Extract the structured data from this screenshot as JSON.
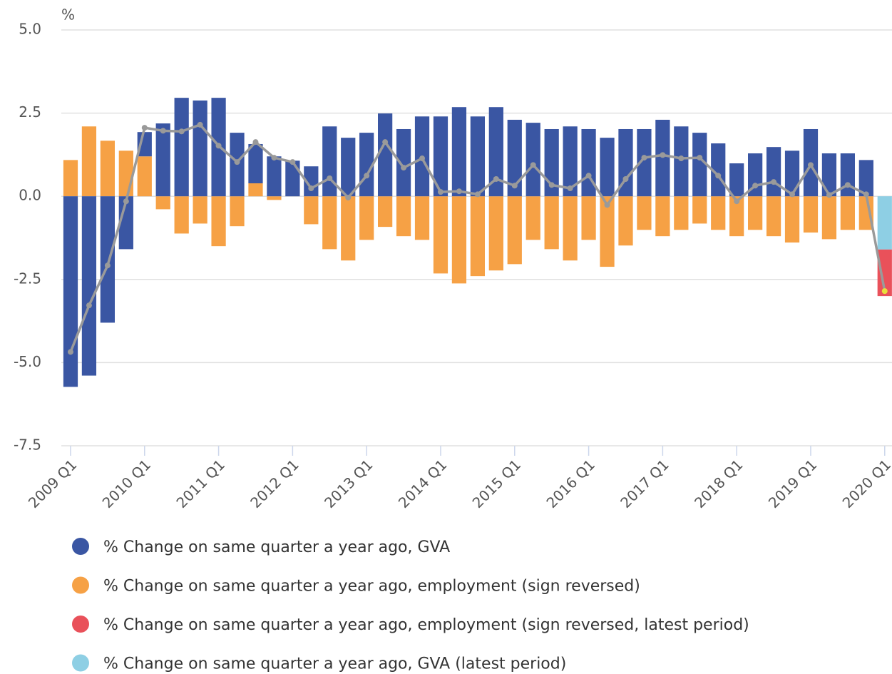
{
  "chart_data": {
    "type": "bar",
    "y_label": "%",
    "categories": [
      "2009 Q1",
      null,
      null,
      null,
      "2010 Q1",
      null,
      null,
      null,
      "2011 Q1",
      null,
      null,
      null,
      "2012 Q1",
      null,
      null,
      null,
      "2013 Q1",
      null,
      null,
      null,
      "2014 Q1",
      null,
      null,
      null,
      "2015 Q1",
      null,
      null,
      null,
      "2016 Q1",
      null,
      null,
      null,
      "2017 Q1",
      null,
      null,
      null,
      "2018 Q1",
      null,
      null,
      null,
      "2019 Q1",
      null,
      null,
      null,
      "2020 Q1"
    ],
    "stacked": true,
    "series": [
      {
        "name": "% Change on same quarter a year ago, GVA",
        "color": "#3a56a3",
        "values": [
          -5.73,
          -5.39,
          -3.8,
          -1.59,
          0.73,
          2.19,
          2.96,
          2.88,
          2.96,
          1.91,
          1.18,
          1.2,
          1.07,
          0.9,
          2.1,
          1.76,
          1.91,
          2.49,
          2.02,
          2.4,
          2.4,
          2.68,
          2.4,
          2.68,
          2.3,
          2.21,
          2.02,
          2.1,
          2.02,
          1.76,
          2.02,
          2.02,
          2.3,
          2.1,
          1.91,
          1.59,
          0.99,
          1.29,
          1.48,
          1.37,
          2.02,
          1.29,
          1.29,
          1.09,
          null
        ]
      },
      {
        "name": "% Change on same quarter a year ago, employment (sign reversed)",
        "color": "#f6a145",
        "values": [
          1.09,
          2.1,
          1.67,
          1.37,
          1.2,
          -0.39,
          -1.12,
          -0.82,
          -1.5,
          -0.9,
          0.39,
          -0.11,
          0,
          -0.84,
          -1.59,
          -1.93,
          -1.31,
          -0.92,
          -1.2,
          -1.31,
          -2.32,
          -2.62,
          -2.4,
          -2.23,
          -2.04,
          -1.31,
          -1.59,
          -1.93,
          -1.31,
          -2.12,
          -1.48,
          -1.01,
          -1.2,
          -1.01,
          -0.82,
          -1.01,
          -1.2,
          -1.01,
          -1.2,
          -1.39,
          -1.09,
          -1.29,
          -1.01,
          -1.01,
          null
        ]
      },
      {
        "name": "% Change on same quarter a year ago, employment (sign reversed, latest period)",
        "color": "#e9515a",
        "values": [
          null,
          null,
          null,
          null,
          null,
          null,
          null,
          null,
          null,
          null,
          null,
          null,
          null,
          null,
          null,
          null,
          null,
          null,
          null,
          null,
          null,
          null,
          null,
          null,
          null,
          null,
          null,
          null,
          null,
          null,
          null,
          null,
          null,
          null,
          null,
          null,
          null,
          null,
          null,
          null,
          null,
          null,
          null,
          null,
          -1.4
        ]
      },
      {
        "name": "% Change on same quarter a year ago, GVA (latest period)",
        "color": "#8ecfe4",
        "values": [
          null,
          null,
          null,
          null,
          null,
          null,
          null,
          null,
          null,
          null,
          null,
          null,
          null,
          null,
          null,
          null,
          null,
          null,
          null,
          null,
          null,
          null,
          null,
          null,
          null,
          null,
          null,
          null,
          null,
          null,
          null,
          null,
          null,
          null,
          null,
          null,
          null,
          null,
          null,
          null,
          null,
          null,
          null,
          null,
          -1.6
        ]
      },
      {
        "type": "line",
        "color": "#9a9a9a",
        "last_point_color": "#e8e03c",
        "values": [
          -4.68,
          -3.28,
          -2.08,
          -0.15,
          2.06,
          1.97,
          1.95,
          2.15,
          1.52,
          1.03,
          1.63,
          1.16,
          1.03,
          0.24,
          0.54,
          -0.04,
          0.62,
          1.63,
          0.86,
          1.14,
          0.13,
          0.15,
          0.06,
          0.52,
          0.32,
          0.94,
          0.34,
          0.24,
          0.62,
          -0.26,
          0.52,
          1.16,
          1.24,
          1.14,
          1.16,
          0.62,
          -0.15,
          0.32,
          0.43,
          0.06,
          0.94,
          0.04,
          0.34,
          0.06,
          -2.85
        ]
      }
    ],
    "ylim": [
      -7.5,
      5
    ],
    "yticks": [
      {
        "value": 5,
        "label": "5.0"
      },
      2.5,
      {
        "value": 0,
        "label": "0.0"
      },
      -2.5,
      {
        "value": -5,
        "label": "-5.0"
      },
      -7.5
    ],
    "grid": true
  }
}
